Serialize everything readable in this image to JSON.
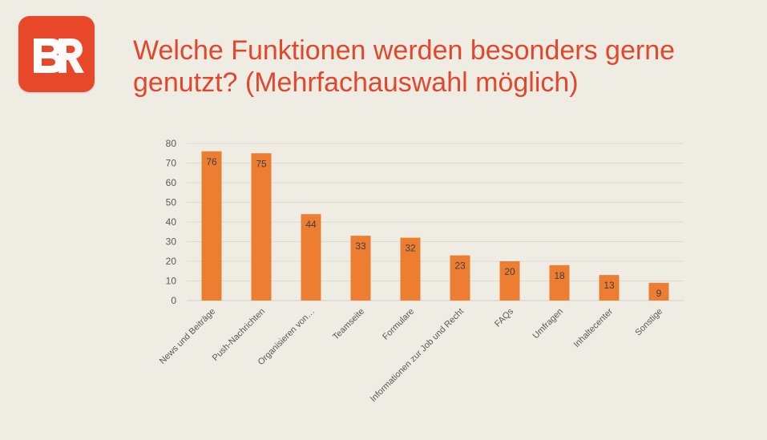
{
  "logo": {
    "text": "BR",
    "color": "#e8472a"
  },
  "header": {
    "title": "Welche Funktionen werden besonders gerne genutzt? (Mehrfachauswahl möglich)"
  },
  "chart_data": {
    "type": "bar",
    "categories": [
      "News und Beiträge",
      "Push-Nachrichten",
      "Organisieren von…",
      "Teamseite",
      "Formulare",
      "Informationen zur Job und Recht",
      "FAQs",
      "Umfragen",
      "Inhaltecenter",
      "Sonstige"
    ],
    "values": [
      76,
      75,
      44,
      33,
      32,
      23,
      20,
      18,
      13,
      9
    ],
    "ylim": [
      0,
      80
    ],
    "yticks": [
      0,
      10,
      20,
      30,
      40,
      50,
      60,
      70,
      80
    ],
    "grid": true,
    "legend": "none",
    "bar_color": "#ed7d31",
    "data_labels": "inside-end"
  }
}
